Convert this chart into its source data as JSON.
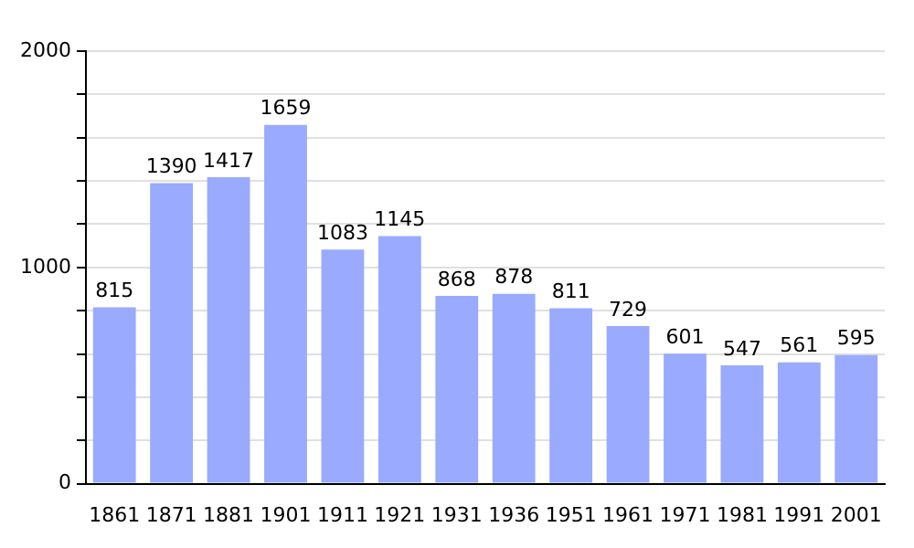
{
  "chart_data": {
    "type": "bar",
    "categories": [
      "1861",
      "1871",
      "1881",
      "1901",
      "1911",
      "1921",
      "1931",
      "1936",
      "1951",
      "1961",
      "1971",
      "1981",
      "1991",
      "2001"
    ],
    "values": [
      815,
      1390,
      1417,
      1659,
      1083,
      1145,
      868,
      878,
      811,
      729,
      601,
      547,
      561,
      595
    ],
    "color": "#99aaff",
    "ylim": [
      0,
      2000
    ],
    "yticks": [
      0,
      {
        "value": 200,
        "label": null
      },
      {
        "value": 400,
        "label": null
      },
      {
        "value": 600,
        "label": null
      },
      {
        "value": 800,
        "label": null
      },
      1000,
      {
        "value": 1200,
        "label": null
      },
      {
        "value": 1400,
        "label": null
      },
      {
        "value": 1600,
        "label": null
      },
      {
        "value": 1800,
        "label": null
      },
      2000
    ],
    "grid": "y",
    "data_labels": true
  }
}
